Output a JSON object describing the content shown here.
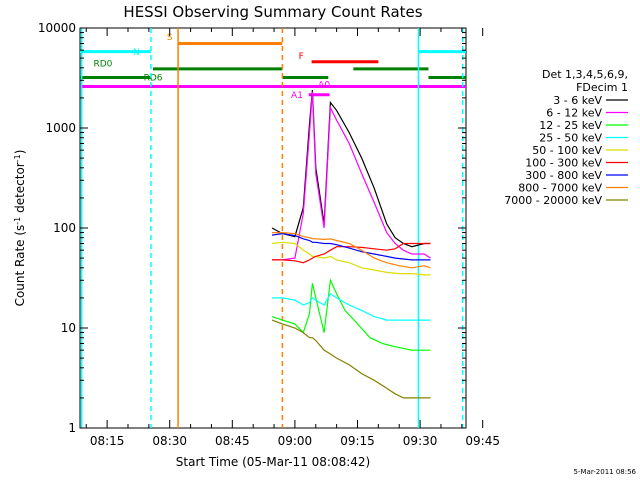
{
  "chart_data": {
    "type": "line",
    "title": "HESSI Observing Summary Count Rates",
    "xlabel": "Start Time (05-Mar-11 08:08:42)",
    "ylabel_main": "Count Rate (s",
    "ylabel_exp1": "-1",
    "ylabel_mid": " detector",
    "ylabel_exp2": "-1",
    "ylabel_end": ")",
    "timestamp": "5-Mar-2011 08:56",
    "yscale": "log",
    "ylim": [
      1,
      10000
    ],
    "xlim_minutes": [
      8.5,
      101
    ],
    "x_ticks": [
      {
        "m": 15,
        "label": "08:15"
      },
      {
        "m": 30,
        "label": "08:30"
      },
      {
        "m": 45,
        "label": "08:45"
      },
      {
        "m": 60,
        "label": "09:00"
      },
      {
        "m": 75,
        "label": "09:15"
      },
      {
        "m": 90,
        "label": "09:30"
      },
      {
        "m": 105,
        "label": "09:45"
      }
    ],
    "y_ticks": [
      {
        "v": 1,
        "label": "1"
      },
      {
        "v": 10,
        "label": "10"
      },
      {
        "v": 100,
        "label": "100"
      },
      {
        "v": 1000,
        "label": "1000"
      },
      {
        "v": 10000,
        "label": "10000"
      }
    ],
    "legend_header": [
      "Det 1,3,4,5,6,9,",
      "FDecim 1"
    ],
    "series": [
      {
        "name": "3 - 6 keV",
        "color": "#000000",
        "points": [
          [
            54.5,
            100
          ],
          [
            57,
            88
          ],
          [
            60,
            82
          ],
          [
            62,
            160
          ],
          [
            63.5,
            1100
          ],
          [
            64.2,
            2400
          ],
          [
            65,
            400
          ],
          [
            67,
            110
          ],
          [
            68.5,
            1800
          ],
          [
            70,
            1500
          ],
          [
            73,
            900
          ],
          [
            76,
            500
          ],
          [
            79,
            250
          ],
          [
            82,
            110
          ],
          [
            84,
            80
          ],
          [
            86,
            70
          ],
          [
            88,
            65
          ],
          [
            91,
            70
          ],
          [
            92.5,
            70
          ]
        ]
      },
      {
        "name": "6 - 12 keV",
        "color": "#ff00ff",
        "points": [
          [
            54.5,
            48
          ],
          [
            57,
            48
          ],
          [
            60,
            50
          ],
          [
            62,
            140
          ],
          [
            63.5,
            900
          ],
          [
            64.2,
            2300
          ],
          [
            65,
            350
          ],
          [
            67,
            100
          ],
          [
            68.5,
            1600
          ],
          [
            70,
            1200
          ],
          [
            73,
            700
          ],
          [
            76,
            350
          ],
          [
            79,
            180
          ],
          [
            82,
            90
          ],
          [
            84,
            70
          ],
          [
            86,
            60
          ],
          [
            88,
            55
          ],
          [
            91,
            55
          ],
          [
            92.5,
            50
          ]
        ]
      },
      {
        "name": "12 - 25 keV",
        "color": "#00ff00",
        "points": [
          [
            54.5,
            13
          ],
          [
            57,
            12
          ],
          [
            60,
            11
          ],
          [
            62,
            9
          ],
          [
            63.5,
            14
          ],
          [
            64.2,
            28
          ],
          [
            65,
            20
          ],
          [
            67,
            9
          ],
          [
            68.5,
            30
          ],
          [
            70,
            22
          ],
          [
            72,
            15
          ],
          [
            75,
            11
          ],
          [
            78,
            8
          ],
          [
            81,
            7
          ],
          [
            84,
            6.5
          ],
          [
            88,
            6
          ],
          [
            91,
            6
          ],
          [
            92.5,
            6
          ]
        ]
      },
      {
        "name": "25 - 50 keV",
        "color": "#00ffff",
        "points": [
          [
            54.5,
            20
          ],
          [
            57,
            20
          ],
          [
            60,
            19
          ],
          [
            62,
            17
          ],
          [
            63.5,
            18
          ],
          [
            64.2,
            20
          ],
          [
            65,
            19
          ],
          [
            67,
            17
          ],
          [
            68.5,
            22
          ],
          [
            70,
            20
          ],
          [
            73,
            17
          ],
          [
            76,
            15
          ],
          [
            79,
            13
          ],
          [
            82,
            12
          ],
          [
            85,
            12
          ],
          [
            88,
            12
          ],
          [
            91,
            12
          ],
          [
            92.5,
            12
          ]
        ]
      },
      {
        "name": "50 - 100 keV",
        "color": "#dddd00",
        "points": [
          [
            54.5,
            70
          ],
          [
            57,
            72
          ],
          [
            60,
            70
          ],
          [
            62,
            60
          ],
          [
            63.5,
            55
          ],
          [
            64.2,
            52
          ],
          [
            65,
            52
          ],
          [
            67,
            50
          ],
          [
            68.5,
            52
          ],
          [
            70,
            48
          ],
          [
            73,
            45
          ],
          [
            76,
            40
          ],
          [
            79,
            38
          ],
          [
            82,
            36
          ],
          [
            85,
            35
          ],
          [
            88,
            35
          ],
          [
            91,
            34
          ],
          [
            92.5,
            34
          ]
        ]
      },
      {
        "name": "100 - 300 keV",
        "color": "#ff0000",
        "points": [
          [
            54.5,
            48
          ],
          [
            57,
            48
          ],
          [
            60,
            47
          ],
          [
            62,
            45
          ],
          [
            63.5,
            48
          ],
          [
            64.2,
            50
          ],
          [
            65,
            52
          ],
          [
            67,
            55
          ],
          [
            68.5,
            60
          ],
          [
            70,
            65
          ],
          [
            73,
            65
          ],
          [
            76,
            64
          ],
          [
            79,
            62
          ],
          [
            82,
            60
          ],
          [
            84,
            62
          ],
          [
            86,
            70
          ],
          [
            88,
            70
          ],
          [
            91,
            70
          ],
          [
            92.5,
            70
          ]
        ]
      },
      {
        "name": "300 - 800 keV",
        "color": "#0000ff",
        "points": [
          [
            54.5,
            85
          ],
          [
            57,
            88
          ],
          [
            60,
            84
          ],
          [
            62,
            78
          ],
          [
            63.5,
            75
          ],
          [
            64.2,
            72
          ],
          [
            65,
            72
          ],
          [
            67,
            70
          ],
          [
            68.5,
            70
          ],
          [
            70,
            68
          ],
          [
            73,
            63
          ],
          [
            76,
            58
          ],
          [
            79,
            55
          ],
          [
            82,
            52
          ],
          [
            84,
            50
          ],
          [
            86,
            49
          ],
          [
            88,
            48
          ],
          [
            91,
            48
          ],
          [
            92.5,
            48
          ]
        ]
      },
      {
        "name": "800 - 7000 keV",
        "color": "#ff8000",
        "points": [
          [
            54.5,
            90
          ],
          [
            57,
            90
          ],
          [
            60,
            88
          ],
          [
            62,
            82
          ],
          [
            63.5,
            80
          ],
          [
            64.2,
            78
          ],
          [
            65,
            78
          ],
          [
            67,
            77
          ],
          [
            68.5,
            78
          ],
          [
            70,
            75
          ],
          [
            73,
            70
          ],
          [
            76,
            60
          ],
          [
            79,
            50
          ],
          [
            82,
            45
          ],
          [
            85,
            42
          ],
          [
            88,
            40
          ],
          [
            91,
            42
          ],
          [
            92.5,
            40
          ]
        ]
      },
      {
        "name": "7000 - 20000 keV",
        "color": "#808000",
        "points": [
          [
            54.5,
            12
          ],
          [
            57,
            11
          ],
          [
            60,
            10
          ],
          [
            62,
            9
          ],
          [
            63.5,
            8
          ],
          [
            64.2,
            8
          ],
          [
            65,
            7.5
          ],
          [
            67,
            6
          ],
          [
            68.5,
            5.5
          ],
          [
            70,
            5
          ],
          [
            73,
            4.3
          ],
          [
            76,
            3.5
          ],
          [
            79,
            3
          ],
          [
            82,
            2.5
          ],
          [
            84,
            2.2
          ],
          [
            86,
            2
          ],
          [
            88,
            2
          ],
          [
            91,
            2
          ],
          [
            92.5,
            2
          ]
        ]
      }
    ],
    "flag_bars": [
      {
        "label": "S",
        "color": "#ff8000",
        "y": 7000,
        "segments": [
          [
            32,
            57
          ]
        ],
        "label_m": 30,
        "label_y": 7600
      },
      {
        "label": "N",
        "color": "#00ffff",
        "y": 5800,
        "segments": [
          [
            8.5,
            25.5
          ],
          [
            89.5,
            101
          ]
        ],
        "label_m": 22,
        "label_y": 5400
      },
      {
        "label": "F",
        "color": "#ff0000",
        "y": 4600,
        "segments": [
          [
            64,
            80
          ]
        ],
        "label_m": 61.5,
        "label_y": 4900
      },
      {
        "label": "RD0",
        "color": "#008000",
        "y": 3900,
        "segments": [
          [
            26,
            57
          ],
          [
            74,
            92
          ]
        ],
        "label_m": 14,
        "label_y": 4100
      },
      {
        "label": "RD6",
        "color": "#008000",
        "y": 3200,
        "segments": [
          [
            8.5,
            25.5
          ],
          [
            57,
            68
          ],
          [
            92,
            97.5
          ],
          [
            97.5,
            101
          ]
        ],
        "label_m": 26,
        "label_y": 3000
      },
      {
        "label": "A1",
        "color": "#ff00ff",
        "y": 2600,
        "segments": [
          [
            8.5,
            101
          ]
        ],
        "label_m": 60.5,
        "label_y": 2000
      },
      {
        "label": "A0",
        "color": "#ff00ff",
        "y": 2150,
        "segments": [
          [
            63.3,
            68.3
          ]
        ],
        "label_m": 67,
        "label_y": 2550
      }
    ],
    "vlines": [
      {
        "m": 8.9,
        "color": "#00ffff",
        "dash": false
      },
      {
        "m": 25.5,
        "color": "#00ffff",
        "dash": true
      },
      {
        "m": 32,
        "color": "#ff8000",
        "dash": false
      },
      {
        "m": 57,
        "color": "#ff8000",
        "dash": true
      },
      {
        "m": 89.6,
        "color": "#00ffff",
        "dash": false
      },
      {
        "m": 100.2,
        "color": "#00ffff",
        "dash": true
      }
    ]
  }
}
